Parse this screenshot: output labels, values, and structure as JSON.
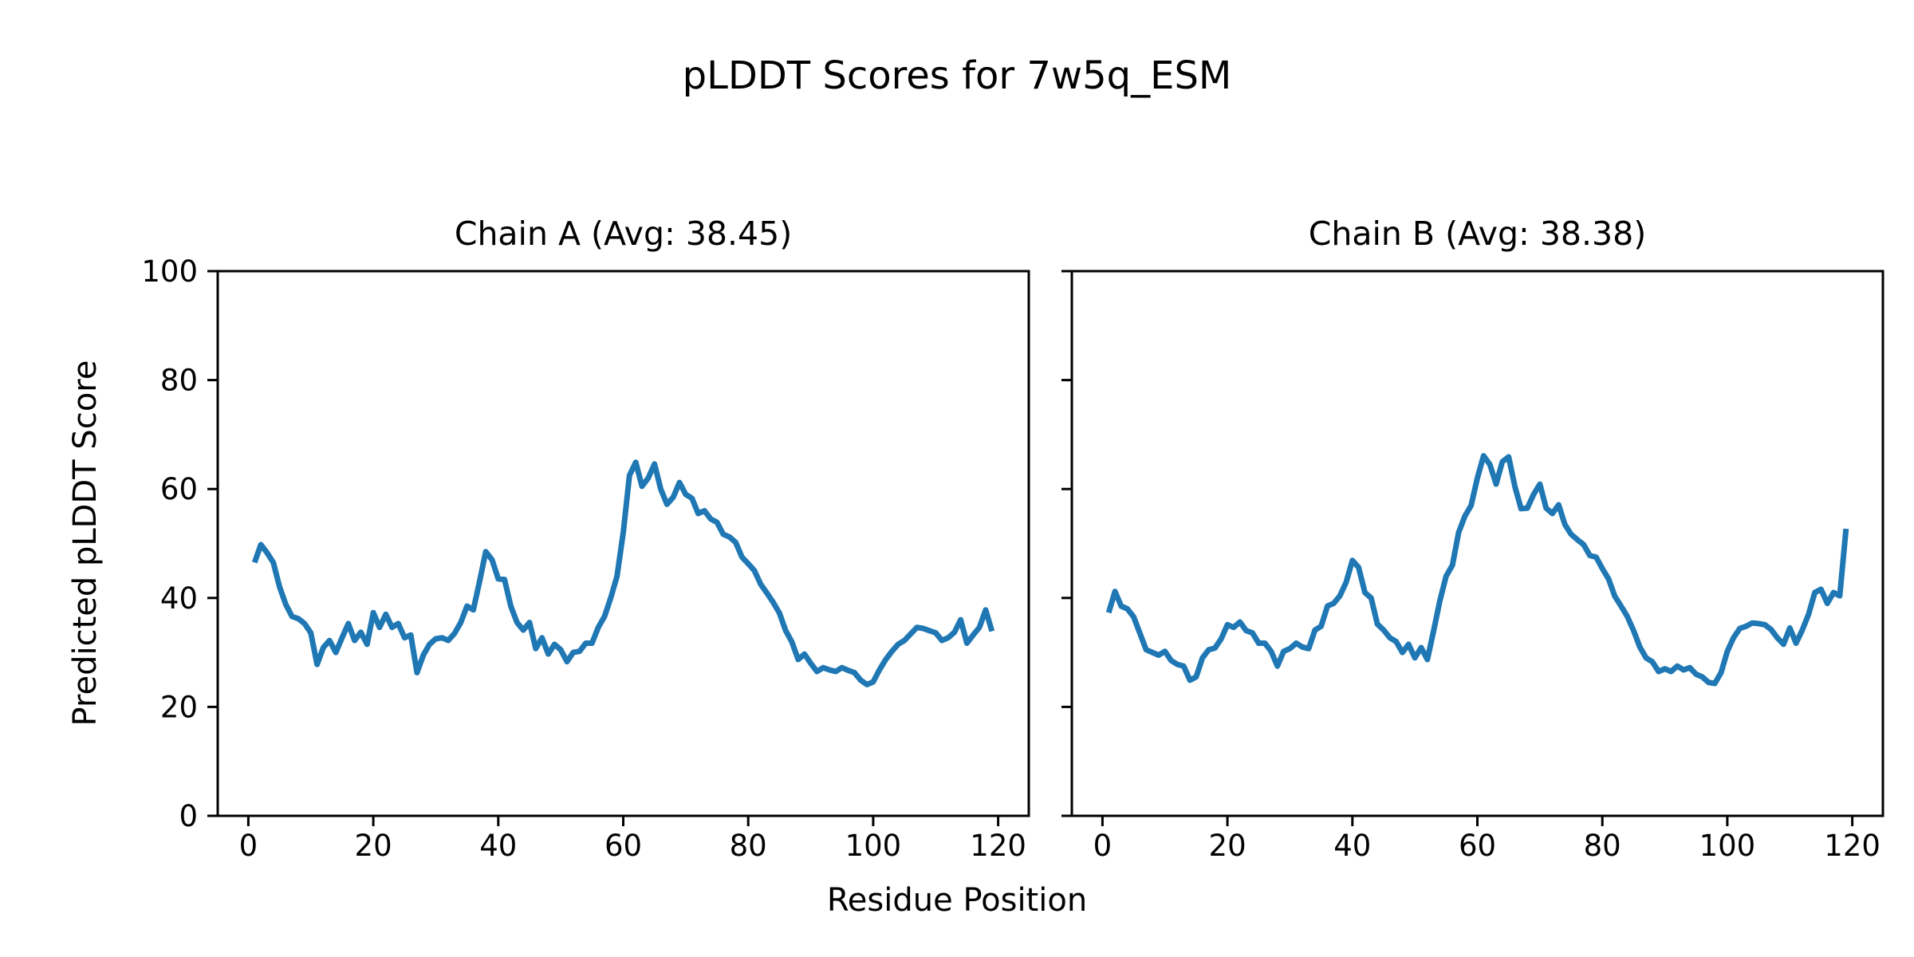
{
  "figure": {
    "suptitle": "pLDDT Scores for 7w5q_ESM",
    "xlabel": "Residue Position",
    "ylabel": "Predicted pLDDT Score",
    "background_color": "#ffffff",
    "text_color": "#000000"
  },
  "chart_data": [
    {
      "type": "line",
      "title": "Chain A (Avg: 38.45)",
      "series_name": "Chain A pLDDT",
      "average": 38.45,
      "line_color": "#1f77b4",
      "xlim": [
        -4.9,
        124.9
      ],
      "ylim": [
        0,
        100
      ],
      "xticks": [
        0,
        20,
        40,
        60,
        80,
        100,
        120
      ],
      "yticks": [
        0,
        20,
        40,
        60,
        80,
        100
      ],
      "grid": false,
      "x_start": 1,
      "x_step": 1,
      "values": [
        46.5,
        49.8,
        48.3,
        46.5,
        42.0,
        38.8,
        36.6,
        36.2,
        35.3,
        33.6,
        27.8,
        30.9,
        32.2,
        30.0,
        32.7,
        35.3,
        32.2,
        33.7,
        31.5,
        37.3,
        34.6,
        37.0,
        34.6,
        35.3,
        32.7,
        33.2,
        26.3,
        29.5,
        31.5,
        32.5,
        32.7,
        32.2,
        33.5,
        35.5,
        38.5,
        37.8,
        43.0,
        48.5,
        47.0,
        43.5,
        43.4,
        38.5,
        35.5,
        34.1,
        35.5,
        30.7,
        32.7,
        29.7,
        31.5,
        30.5,
        28.3,
        30.0,
        30.2,
        31.7,
        31.7,
        34.6,
        36.6,
        40.0,
        44.0,
        52.0,
        62.5,
        64.9,
        60.5,
        62.0,
        64.6,
        60.0,
        57.2,
        58.5,
        61.2,
        59.0,
        58.3,
        55.5,
        56.0,
        54.5,
        53.9,
        51.7,
        51.2,
        50.2,
        47.5,
        46.3,
        45.0,
        42.5,
        40.9,
        39.2,
        37.2,
        34.0,
        31.9,
        28.7,
        29.7,
        28.0,
        26.5,
        27.2,
        26.8,
        26.5,
        27.2,
        26.7,
        26.3,
        24.9,
        24.1,
        24.6,
        26.8,
        28.7,
        30.2,
        31.5,
        32.2,
        33.4,
        34.6,
        34.4,
        34.0,
        33.6,
        32.2,
        32.7,
        33.7,
        36.0,
        31.7,
        33.2,
        34.6,
        37.8,
        33.9
      ]
    },
    {
      "type": "line",
      "title": "Chain B (Avg: 38.38)",
      "series_name": "Chain B pLDDT",
      "average": 38.38,
      "line_color": "#1f77b4",
      "xlim": [
        -4.9,
        124.9
      ],
      "ylim": [
        0,
        100
      ],
      "xticks": [
        0,
        20,
        40,
        60,
        80,
        100,
        120
      ],
      "yticks": [
        0,
        20,
        40,
        60,
        80,
        100
      ],
      "grid": false,
      "x_start": 1,
      "x_step": 1,
      "values": [
        37.3,
        41.2,
        38.5,
        38.0,
        36.5,
        33.5,
        30.5,
        30.0,
        29.5,
        30.2,
        28.5,
        27.8,
        27.5,
        24.9,
        25.5,
        29.0,
        30.5,
        30.8,
        32.5,
        35.1,
        34.6,
        35.6,
        34.0,
        33.6,
        31.7,
        31.7,
        30.2,
        27.5,
        30.2,
        30.7,
        31.7,
        31.0,
        30.7,
        34.1,
        34.8,
        38.5,
        39.0,
        40.4,
        42.9,
        46.9,
        45.6,
        41.0,
        40.0,
        35.2,
        34.1,
        32.7,
        32.0,
        30.0,
        31.5,
        29.0,
        30.9,
        28.7,
        34.0,
        39.5,
        44.0,
        46.0,
        52.0,
        55.0,
        57.0,
        62.0,
        66.1,
        64.5,
        60.9,
        65.0,
        65.9,
        60.5,
        56.4,
        56.5,
        59.0,
        60.9,
        56.5,
        55.5,
        57.1,
        53.5,
        51.7,
        50.7,
        49.8,
        47.8,
        47.5,
        45.4,
        43.5,
        40.3,
        38.5,
        36.6,
        34.0,
        31.0,
        29.0,
        28.3,
        26.5,
        27.0,
        26.5,
        27.5,
        26.8,
        27.2,
        26.0,
        25.5,
        24.5,
        24.3,
        26.3,
        30.2,
        32.7,
        34.4,
        34.8,
        35.4,
        35.3,
        35.1,
        34.2,
        32.7,
        31.5,
        34.5,
        31.7,
        34.1,
        37.0,
        41.0,
        41.6,
        39.0,
        41.0,
        40.4,
        52.7
      ]
    }
  ]
}
